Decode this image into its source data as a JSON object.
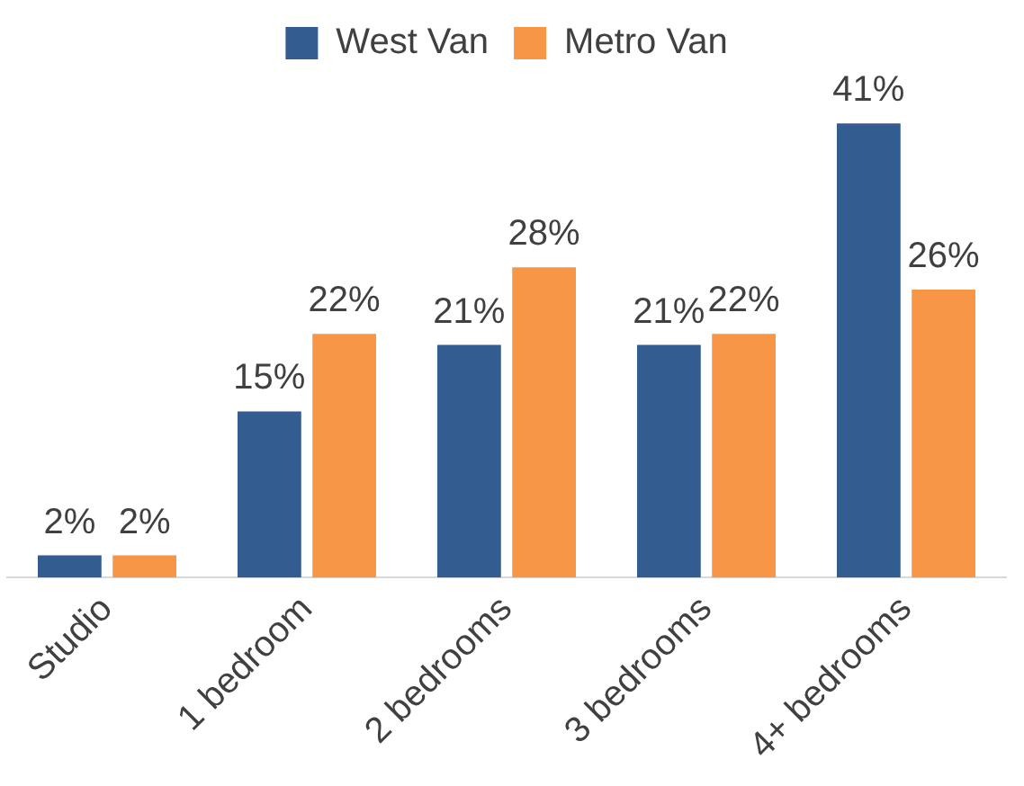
{
  "chart_data": {
    "type": "bar",
    "categories": [
      "Studio",
      "1 bedroom",
      "2 bedrooms",
      "3 bedrooms",
      "4+ bedrooms"
    ],
    "series": [
      {
        "name": "West Van",
        "color": "#335c91",
        "values": [
          2,
          15,
          21,
          21,
          41
        ],
        "value_labels": [
          "2%",
          "15%",
          "21%",
          "21%",
          "41%"
        ]
      },
      {
        "name": "Metro Van",
        "color": "#f79646",
        "values": [
          2,
          22,
          28,
          22,
          26
        ],
        "value_labels": [
          "2%",
          "22%",
          "28%",
          "22%",
          "26%"
        ]
      }
    ],
    "legend": "top",
    "grid": false
  }
}
